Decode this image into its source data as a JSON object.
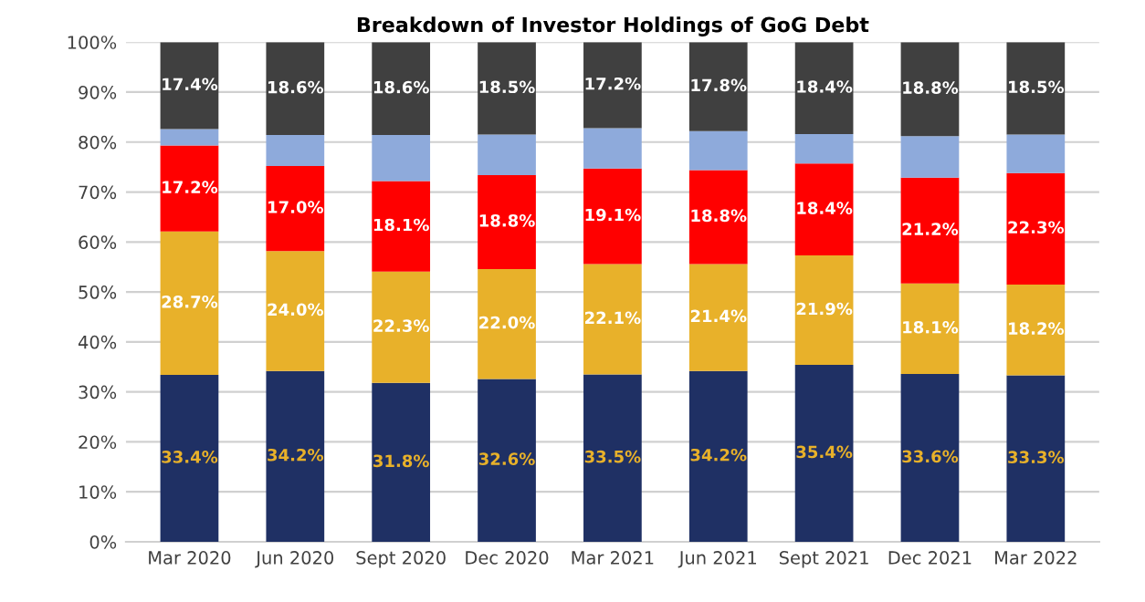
{
  "chart_data": {
    "type": "bar",
    "stacked": true,
    "title": "Breakdown of Investor Holdings of GoG Debt",
    "categories": [
      "Mar 2020",
      "Jun 2020",
      "Sept 2020",
      "Dec 2020",
      "Mar 2021",
      "Jun 2021",
      "Sept 2021",
      "Dec 2021",
      "Mar 2022"
    ],
    "series": [
      {
        "color": "#1f3064",
        "values": [
          33.4,
          34.2,
          31.8,
          32.6,
          33.5,
          34.2,
          35.4,
          33.6,
          33.3
        ],
        "value_labels": [
          "33.4%",
          "34.2%",
          "31.8%",
          "32.6%",
          "33.5%",
          "34.2%",
          "35.4%",
          "33.6%",
          "33.3%"
        ]
      },
      {
        "color": "#e8b12a",
        "values": [
          28.7,
          24.0,
          22.3,
          22.0,
          22.1,
          21.4,
          21.9,
          18.1,
          18.2
        ],
        "value_labels": [
          "28.7%",
          "24.0%",
          "22.3%",
          "22.0%",
          "22.1%",
          "21.4%",
          "21.9%",
          "18.1%",
          "18.2%"
        ]
      },
      {
        "color": "#ff0000",
        "values": [
          17.2,
          17.0,
          18.1,
          18.8,
          19.1,
          18.8,
          18.4,
          21.2,
          22.3
        ],
        "value_labels": [
          "17.2%",
          "17.0%",
          "18.1%",
          "18.8%",
          "19.1%",
          "18.8%",
          "18.4%",
          "21.2%",
          "22.3%"
        ]
      },
      {
        "color": "#8eaadb",
        "values": [
          3.3,
          6.2,
          9.2,
          8.1,
          8.1,
          7.8,
          5.9,
          8.3,
          7.7
        ]
      },
      {
        "color": "#404040",
        "values": [
          17.4,
          18.6,
          18.6,
          18.5,
          17.2,
          17.8,
          18.4,
          18.8,
          18.5
        ],
        "value_labels": [
          "17.4%",
          "18.6%",
          "18.6%",
          "18.5%",
          "17.2%",
          "17.8%",
          "18.4%",
          "18.8%",
          "18.5%"
        ]
      }
    ],
    "ylim": [
      0,
      100
    ],
    "yticks": [
      {
        "value": 0,
        "label": "0%"
      },
      {
        "value": 10,
        "label": "10%"
      },
      {
        "value": 20,
        "label": "20%"
      },
      {
        "value": 30,
        "label": "30%"
      },
      {
        "value": 40,
        "label": "40%"
      },
      {
        "value": 50,
        "label": "50%"
      },
      {
        "value": 60,
        "label": "60%"
      },
      {
        "value": 70,
        "label": "70%"
      },
      {
        "value": 80,
        "label": "80%"
      },
      {
        "value": 90,
        "label": "90%"
      },
      {
        "value": 100,
        "label": "100%"
      }
    ],
    "grid": "y"
  }
}
